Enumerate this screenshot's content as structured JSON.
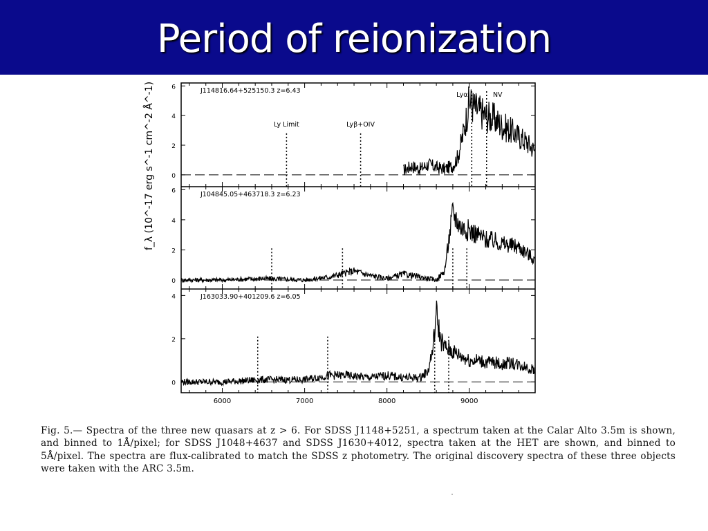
{
  "slide": {
    "title": "Period of reionization",
    "caption": "Fig. 5.— Spectra of the three new quasars at z > 6. For SDSS J1148+5251, a spectrum taken at the Calar Alto 3.5m is shown, and binned to 1Å/pixel; for SDSS J1048+4637 and SDSS J1630+4012, spectra taken at the HET are shown, and binned to 5Å/pixel. The spectra are flux-calibrated to match the SDSS z photometry. The original discovery spectra of these three objects were taken with the ARC 3.5m."
  },
  "chart_data": {
    "type": "line",
    "ylabel": "f_λ (10^-17 erg s^-1 cm^-2 Å^-1)",
    "x_ticks": [
      6000,
      7000,
      8000,
      9000
    ],
    "x_tick_labels": [
      "6000",
      "7000",
      "8000",
      "9000"
    ],
    "xlim": [
      5500,
      9800
    ],
    "panels": [
      {
        "name": "J114816.64+525150.3 z=6.43",
        "ylim": [
          -0.8,
          6.2
        ],
        "y_ticks": [
          "0",
          "2",
          "4",
          "6"
        ],
        "lines": [
          {
            "label": "Ly Limit",
            "x": 6780
          },
          {
            "label": "Lyβ+OIV",
            "x": 7680
          },
          {
            "label": "Lyα",
            "x": 9030
          },
          {
            "label": "NV",
            "x": 9210
          }
        ],
        "x": [
          8200,
          8300,
          8400,
          8500,
          8600,
          8700,
          8800,
          8860,
          8920,
          8980,
          9000,
          9050,
          9100,
          9200,
          9300,
          9400,
          9500,
          9600,
          9700,
          9800
        ],
        "y": [
          0.3,
          0.6,
          0.4,
          0.7,
          0.5,
          0.4,
          0.6,
          1.2,
          2.6,
          4.3,
          5.0,
          4.6,
          4.4,
          4.0,
          3.8,
          3.3,
          3.0,
          2.6,
          2.2,
          1.6
        ]
      },
      {
        "name": "J104845.05+463718.3 z=6.23",
        "ylim": [
          -0.6,
          6.2
        ],
        "y_ticks": [
          "0",
          "2",
          "4",
          "6"
        ],
        "lines": [
          {
            "x": 6600
          },
          {
            "x": 7460
          },
          {
            "x": 8800
          },
          {
            "x": 8970
          }
        ],
        "x": [
          5500,
          6000,
          6500,
          7000,
          7300,
          7450,
          7600,
          7800,
          8000,
          8200,
          8400,
          8600,
          8700,
          8750,
          8800,
          8850,
          8900,
          9000,
          9100,
          9200,
          9300,
          9400,
          9500,
          9600,
          9700,
          9800
        ],
        "y": [
          0.0,
          0.0,
          0.1,
          0.0,
          0.2,
          0.4,
          0.6,
          0.3,
          0.1,
          0.4,
          0.2,
          0.0,
          0.6,
          2.6,
          4.5,
          4.0,
          3.5,
          3.3,
          3.0,
          2.7,
          2.6,
          2.4,
          2.3,
          2.2,
          1.8,
          1.3
        ]
      },
      {
        "name": "J163033.90+401209.6 z=6.05",
        "ylim": [
          -0.5,
          4.3
        ],
        "y_ticks": [
          "0",
          "2",
          "4"
        ],
        "lines": [
          {
            "x": 6430
          },
          {
            "x": 7280
          },
          {
            "x": 8580
          },
          {
            "x": 8750
          }
        ],
        "x": [
          5500,
          6000,
          6500,
          7000,
          7300,
          7500,
          7800,
          8000,
          8200,
          8400,
          8500,
          8560,
          8600,
          8650,
          8700,
          8800,
          8900,
          9000,
          9100,
          9200,
          9300,
          9400,
          9500,
          9600,
          9700,
          9800
        ],
        "y": [
          0.0,
          0.0,
          0.1,
          0.1,
          0.3,
          0.3,
          0.2,
          0.3,
          0.2,
          0.2,
          0.5,
          1.6,
          3.2,
          2.0,
          1.6,
          1.4,
          1.2,
          1.0,
          1.0,
          0.9,
          0.9,
          0.8,
          0.9,
          0.8,
          0.7,
          0.5
        ]
      }
    ]
  }
}
